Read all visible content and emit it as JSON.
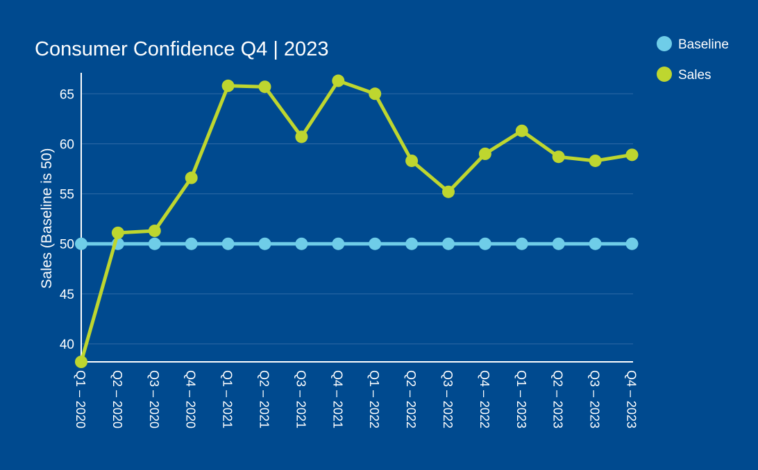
{
  "chart_data": {
    "type": "line",
    "title": "Consumer Confidence Q4 | 2023",
    "xlabel": "",
    "ylabel": "Sales (Baseline is 50)",
    "categories": [
      "Q1 – 2020",
      "Q2 – 2020",
      "Q3 – 2020",
      "Q4 – 2020",
      "Q1 – 2021",
      "Q2 – 2021",
      "Q3 – 2021",
      "Q4 – 2021",
      "Q1 – 2022",
      "Q2 – 2022",
      "Q3 – 2022",
      "Q4 – 2022",
      "Q1 – 2023",
      "Q2 – 2023",
      "Q3 – 2023",
      "Q4 – 2023"
    ],
    "yticks": [
      40,
      45,
      50,
      55,
      60,
      65
    ],
    "ylim": [
      38.2,
      67.1
    ],
    "grid": true,
    "legend_position": "top-right",
    "series": [
      {
        "name": "Baseline",
        "color": "#6fcde8",
        "values": [
          50,
          50,
          50,
          50,
          50,
          50,
          50,
          50,
          50,
          50,
          50,
          50,
          50,
          50,
          50,
          50
        ]
      },
      {
        "name": "Sales",
        "color": "#bed62f",
        "values": [
          38.2,
          51.1,
          51.3,
          56.6,
          65.8,
          65.7,
          60.7,
          66.3,
          65.0,
          58.3,
          55.2,
          59.0,
          61.3,
          58.7,
          58.3,
          58.9
        ]
      }
    ]
  },
  "colors": {
    "background": "#004a8f",
    "grid": "#2f6aa6",
    "axis": "#ffffff",
    "text": "#ffffff"
  }
}
